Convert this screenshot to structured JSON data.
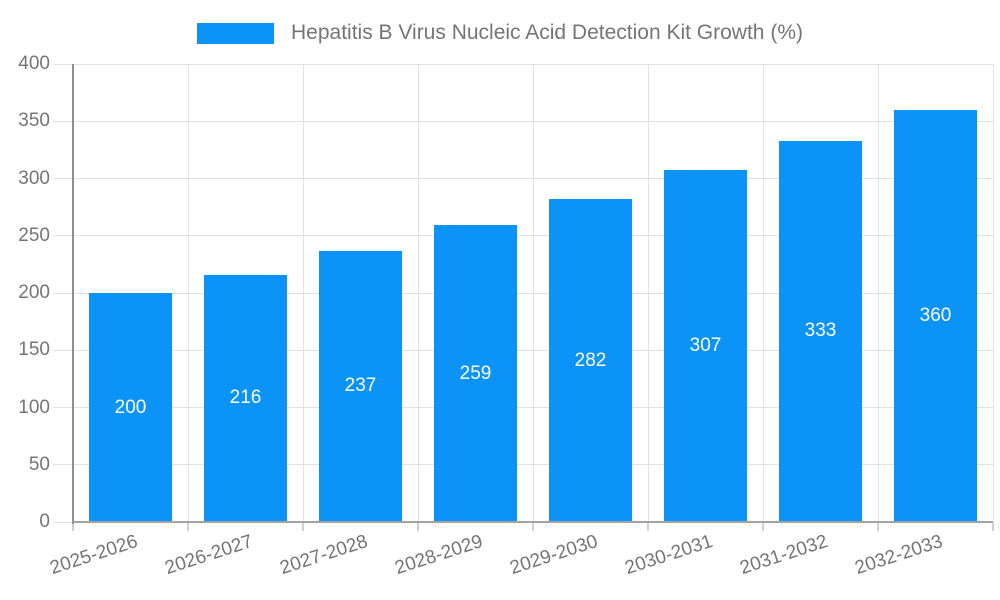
{
  "legend": {
    "label": "Hepatitis B Virus Nucleic Acid Detection Kit Growth (%)"
  },
  "chart_data": {
    "type": "bar",
    "title": "Hepatitis B Virus Nucleic Acid Detection Kit Growth (%)",
    "categories": [
      "2025-2026",
      "2026-2027",
      "2027-2028",
      "2028-2029",
      "2029-2030",
      "2030-2031",
      "2031-2032",
      "2032-2033"
    ],
    "values": [
      200,
      216,
      237,
      259,
      282,
      307,
      333,
      360
    ],
    "series_name": "Hepatitis B Virus Nucleic Acid Detection Kit Growth (%)",
    "xlabel": "",
    "ylabel": "",
    "ylim": [
      0,
      400
    ],
    "yticks": [
      0,
      50,
      100,
      150,
      200,
      250,
      300,
      350,
      400
    ],
    "grid": true,
    "legend_position": "top-center",
    "value_labels": "inside-center",
    "colors": {
      "bar": "#0c93f7",
      "value_label": "#ffffff",
      "axis_text": "#757575",
      "gridline": "#e2e2e2",
      "axis_line": "#8f8f8f",
      "background": "#ffffff"
    }
  }
}
